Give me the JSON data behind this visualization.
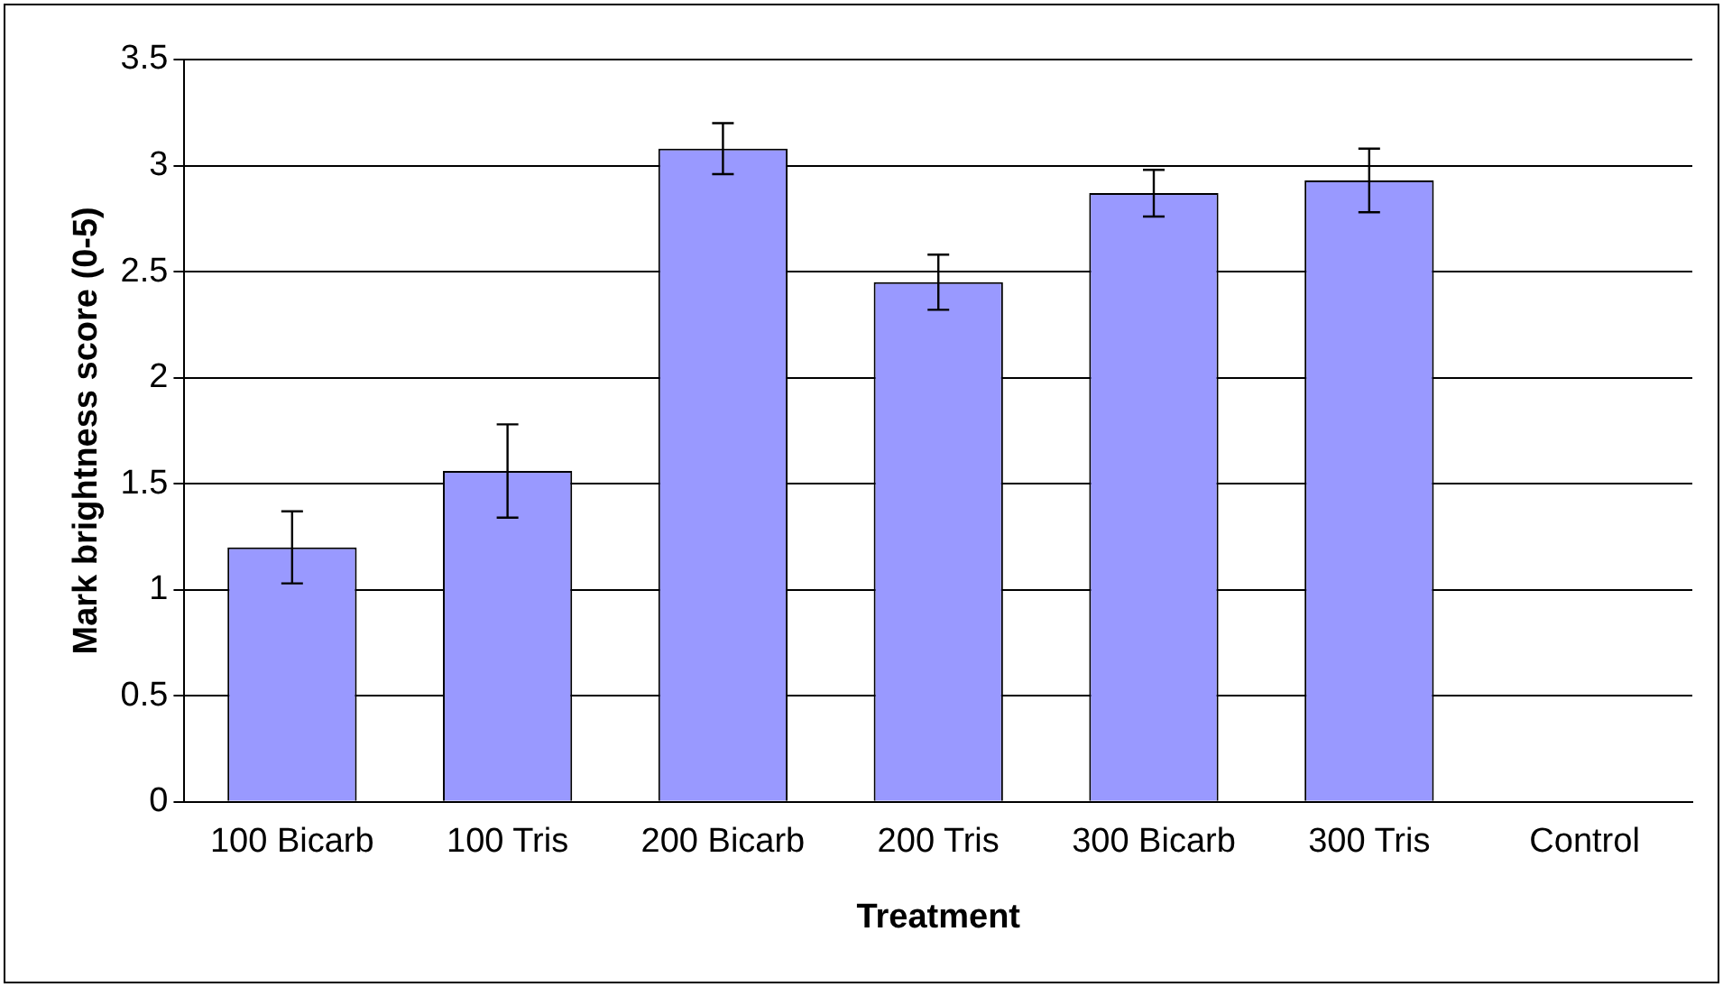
{
  "chart_data": {
    "type": "bar",
    "xlabel": "Treatment",
    "ylabel": "Mark brightness score (0-5)",
    "categories": [
      "100 Bicarb",
      "100 Tris",
      "200 Bicarb",
      "200 Tris",
      "300 Bicarb",
      "300 Tris",
      "Control"
    ],
    "values": [
      1.2,
      1.56,
      3.08,
      2.45,
      2.87,
      2.93,
      0
    ],
    "errors": [
      0.17,
      0.22,
      0.12,
      0.13,
      0.11,
      0.15,
      null
    ],
    "color": "#9999ff",
    "ylim": [
      0,
      3.5
    ],
    "yticks": [
      0,
      0.5,
      1,
      1.5,
      2,
      2.5,
      3,
      3.5
    ],
    "grid": "y",
    "legend": false
  }
}
